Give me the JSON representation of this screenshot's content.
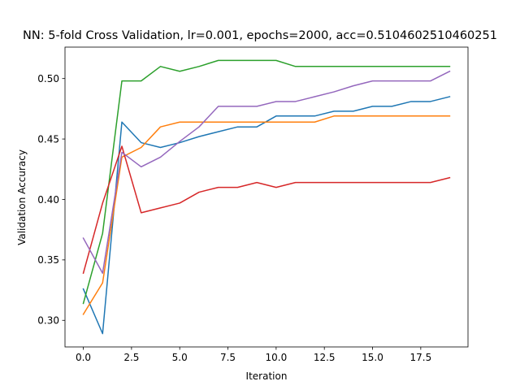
{
  "chart_data": {
    "type": "line",
    "title": "NN: 5-fold Cross Validation, lr=0.001, epochs=2000, acc=0.5104602510460251",
    "xlabel": "Iteration",
    "ylabel": "Validation Accuracy",
    "xlim": [
      -0.95,
      19.95
    ],
    "ylim": [
      0.278,
      0.526
    ],
    "xticks": [
      0.0,
      2.5,
      5.0,
      7.5,
      10.0,
      12.5,
      15.0,
      17.5
    ],
    "xtick_labels": [
      "0.0",
      "2.5",
      "5.0",
      "7.5",
      "10.0",
      "12.5",
      "15.0",
      "17.5"
    ],
    "yticks": [
      0.3,
      0.35,
      0.4,
      0.45,
      0.5
    ],
    "ytick_labels": [
      "0.30",
      "0.35",
      "0.40",
      "0.45",
      "0.50"
    ],
    "grid": false,
    "x": [
      0,
      1,
      2,
      3,
      4,
      5,
      6,
      7,
      8,
      9,
      10,
      11,
      12,
      13,
      14,
      15,
      16,
      17,
      18,
      19
    ],
    "series": [
      {
        "color": "#1f77b4",
        "values": [
          0.326,
          0.289,
          0.464,
          0.447,
          0.443,
          0.447,
          0.452,
          0.456,
          0.46,
          0.46,
          0.469,
          0.469,
          0.469,
          0.473,
          0.473,
          0.477,
          0.477,
          0.481,
          0.481,
          0.485
        ]
      },
      {
        "color": "#ff7f0e",
        "values": [
          0.305,
          0.331,
          0.435,
          0.443,
          0.46,
          0.464,
          0.464,
          0.464,
          0.464,
          0.464,
          0.464,
          0.464,
          0.464,
          0.469,
          0.469,
          0.469,
          0.469,
          0.469,
          0.469,
          0.469
        ]
      },
      {
        "color": "#2ca02c",
        "values": [
          0.314,
          0.372,
          0.498,
          0.498,
          0.51,
          0.506,
          0.51,
          0.515,
          0.515,
          0.515,
          0.515,
          0.51,
          0.51,
          0.51,
          0.51,
          0.51,
          0.51,
          0.51,
          0.51,
          0.51
        ]
      },
      {
        "color": "#d62728",
        "values": [
          0.339,
          0.397,
          0.444,
          0.389,
          0.393,
          0.397,
          0.406,
          0.41,
          0.41,
          0.414,
          0.41,
          0.414,
          0.414,
          0.414,
          0.414,
          0.414,
          0.414,
          0.414,
          0.414,
          0.418
        ]
      },
      {
        "color": "#9467bd",
        "values": [
          0.368,
          0.339,
          0.439,
          0.427,
          0.435,
          0.448,
          0.46,
          0.477,
          0.477,
          0.477,
          0.481,
          0.481,
          0.485,
          0.489,
          0.494,
          0.498,
          0.498,
          0.498,
          0.498,
          0.506
        ]
      }
    ]
  }
}
